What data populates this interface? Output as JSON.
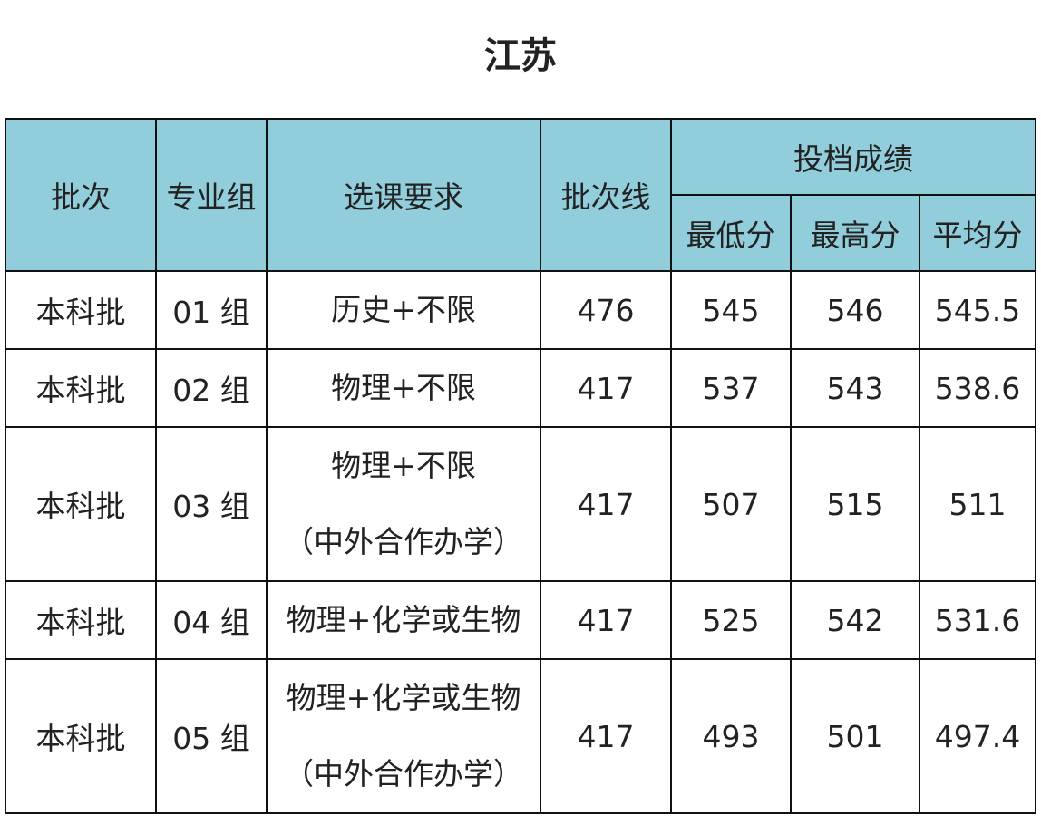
{
  "title": "江苏",
  "table": {
    "headers": {
      "batch": "批次",
      "group": "专业组",
      "requirement": "选课要求",
      "line": "批次线",
      "scores": "投档成绩",
      "min": "最低分",
      "max": "最高分",
      "avg": "平均分"
    },
    "rows": [
      [
        "本科批",
        "01 组",
        [
          "历史+不限"
        ],
        476,
        545,
        546,
        545.5
      ],
      [
        "本科批",
        "02 组",
        [
          "物理+不限"
        ],
        417,
        537,
        543,
        538.6
      ],
      [
        "本科批",
        "03 组",
        [
          "物理+不限",
          "（中外合作办学）"
        ],
        417,
        507,
        515,
        511
      ],
      [
        "本科批",
        "04 组",
        [
          "物理+化学或生物"
        ],
        417,
        525,
        542,
        531.6
      ],
      [
        "本科批",
        "05 组",
        [
          "物理+化学或生物",
          "（中外合作办学）"
        ],
        417,
        493,
        501,
        497.4
      ]
    ]
  }
}
